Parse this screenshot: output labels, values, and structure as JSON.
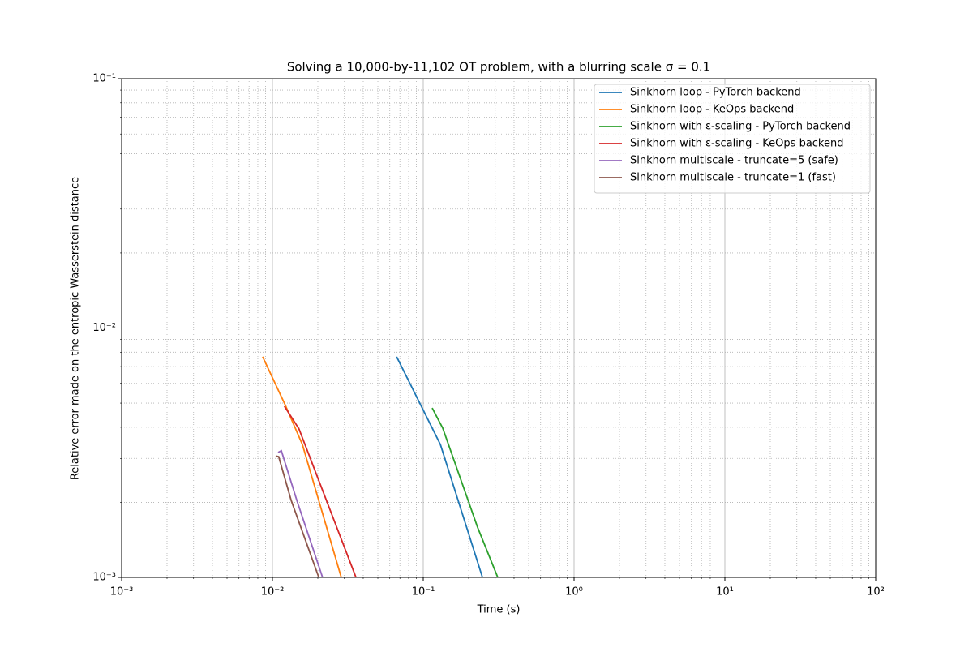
{
  "chart_data": {
    "type": "line",
    "title": "Solving a 10,000-by-11,102 OT problem, with a blurring scale σ = 0.1",
    "x_label": "Time (s)",
    "y_label": "Relative error made on the entropic Wasserstein distance",
    "x_scale": "log",
    "y_scale": "log",
    "grid": true,
    "legend": "upper right",
    "xlim": [
      0.001,
      100
    ],
    "ylim": [
      0.001,
      0.1
    ],
    "xticks": [
      {
        "value": 0.001,
        "label": "10⁻³"
      },
      {
        "value": 0.01,
        "label": "10⁻²"
      },
      {
        "value": 0.1,
        "label": "10⁻¹"
      },
      {
        "value": 1,
        "label": "10⁰"
      },
      {
        "value": 10,
        "label": "10¹"
      },
      {
        "value": 100,
        "label": "10²"
      }
    ],
    "yticks": [
      {
        "value": 0.001,
        "label": "10⁻³"
      },
      {
        "value": 0.01,
        "label": "10⁻²"
      },
      {
        "value": 0.1,
        "label": "10⁻¹"
      }
    ],
    "xminorticks": [
      0.002,
      0.003,
      0.004,
      0.005,
      0.006,
      0.007,
      0.008,
      0.009,
      0.02,
      0.03,
      0.04,
      0.05,
      0.06,
      0.07,
      0.08,
      0.09,
      0.2,
      0.3,
      0.4,
      0.5,
      0.6,
      0.7,
      0.8,
      0.9,
      2,
      3,
      4,
      5,
      6,
      7,
      8,
      9,
      20,
      30,
      40,
      50,
      60,
      70,
      80,
      90
    ],
    "yminorticks": [
      0.002,
      0.003,
      0.004,
      0.005,
      0.006,
      0.007,
      0.008,
      0.009,
      0.02,
      0.03,
      0.04,
      0.05,
      0.06,
      0.07,
      0.08,
      0.09
    ],
    "series": [
      {
        "name": "Sinkhorn loop - PyTorch backend",
        "color": "#1f77b4",
        "x": [
          0.0666,
          0.13,
          0.247
        ],
        "values": [
          0.00767,
          0.00341,
          0.001
        ]
      },
      {
        "name": "Sinkhorn loop - KeOps backend",
        "color": "#ff7f0e",
        "x": [
          0.00861,
          0.0122,
          0.0158,
          0.0286
        ],
        "values": [
          0.00767,
          0.00489,
          0.00341,
          0.001
        ]
      },
      {
        "name": "Sinkhorn with ε-scaling - PyTorch backend",
        "color": "#2ca02c",
        "x": [
          0.1146,
          0.1346,
          0.229,
          0.312
        ],
        "values": [
          0.00478,
          0.00397,
          0.00159,
          0.001
        ]
      },
      {
        "name": "Sinkhorn with ε-scaling - KeOps backend",
        "color": "#d62728",
        "x": [
          0.012,
          0.015,
          0.0358
        ],
        "values": [
          0.00486,
          0.00394,
          0.001
        ]
      },
      {
        "name": "Sinkhorn multiscale - truncate=5 (safe)",
        "color": "#9467bd",
        "x": [
          0.0109,
          0.01146,
          0.0145,
          0.0215
        ],
        "values": [
          0.00317,
          0.00322,
          0.00204,
          0.001
        ]
      },
      {
        "name": "Sinkhorn multiscale - truncate=1 (fast)",
        "color": "#8c564b",
        "x": [
          0.01051,
          0.011,
          0.0133,
          0.0203
        ],
        "values": [
          0.00307,
          0.00305,
          0.00204,
          0.001
        ]
      }
    ]
  }
}
